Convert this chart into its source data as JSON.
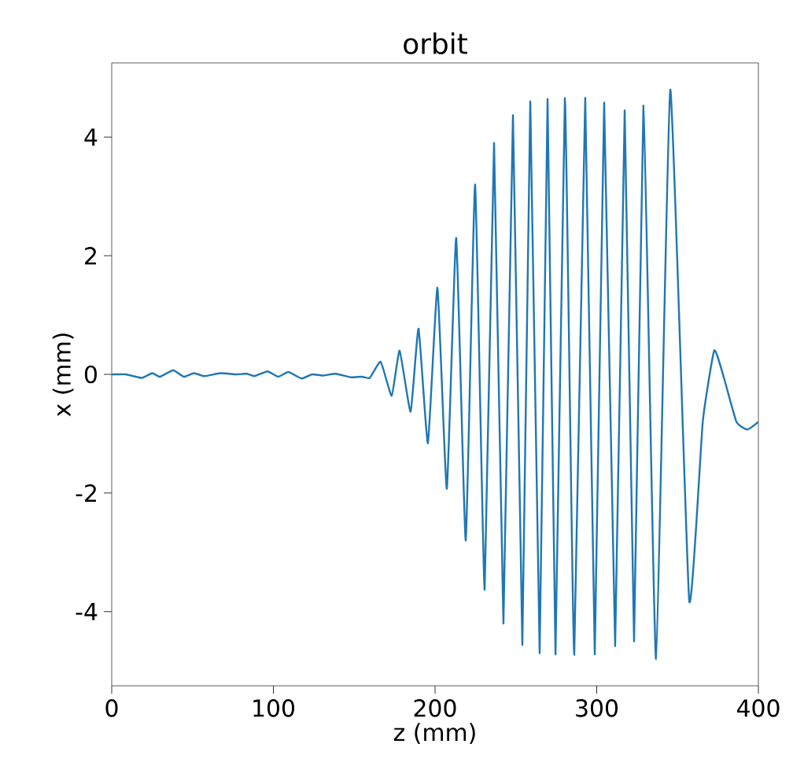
{
  "chart_data": {
    "type": "line",
    "title": "orbit",
    "xlabel": "z (mm)",
    "ylabel": "x (mm)",
    "xlim": [
      0,
      400
    ],
    "ylim": [
      -5.25,
      5.25
    ],
    "xticks": [
      0,
      100,
      200,
      300,
      400
    ],
    "yticks": [
      -4,
      -2,
      0,
      2,
      4
    ],
    "series": [
      {
        "color": "#1f77b4",
        "x": [
          0,
          3.9,
          8.8,
          18.5,
          25,
          29.9,
          38,
          44.5,
          50.9,
          57.4,
          67.2,
          76.9,
          83.4,
          88.3,
          96.4,
          102.9,
          109.3,
          117.5,
          123.9,
          130.4,
          138.5,
          148.2,
          154.7,
          159.6,
          166.4,
          173.2,
          178.1,
          184.9,
          189.8,
          195.6,
          201.5,
          207.3,
          213.1,
          219,
          224.8,
          230.7,
          236.5,
          242.3,
          248.2,
          254,
          258.9,
          264.7,
          269.6,
          274.5,
          280.3,
          286.1,
          292.9,
          298.8,
          304.6,
          311.4,
          317.3,
          323.1,
          328.9,
          336.7,
          345.5,
          357.2,
          365.6,
          372.7,
          378.6,
          386.4,
          393.2,
          400
        ],
        "values": [
          0,
          0,
          0,
          -0.06,
          0.02,
          -0.04,
          0.07,
          -0.04,
          0.02,
          -0.03,
          0.02,
          0,
          0.01,
          -0.03,
          0.05,
          -0.04,
          0.04,
          -0.07,
          0,
          -0.02,
          0.01,
          -0.05,
          -0.04,
          -0.06,
          0.21,
          -0.36,
          0.4,
          -0.63,
          0.77,
          -1.16,
          1.46,
          -1.93,
          2.3,
          -2.8,
          3.2,
          -3.63,
          3.9,
          -4.2,
          4.37,
          -4.56,
          4.6,
          -4.7,
          4.64,
          -4.72,
          4.66,
          -4.73,
          4.66,
          -4.72,
          4.58,
          -4.58,
          4.45,
          -4.5,
          4.53,
          -4.8,
          4.8,
          -3.81,
          -0.8,
          0.4,
          -0.05,
          -0.8,
          -0.93,
          -0.8
        ]
      }
    ]
  }
}
